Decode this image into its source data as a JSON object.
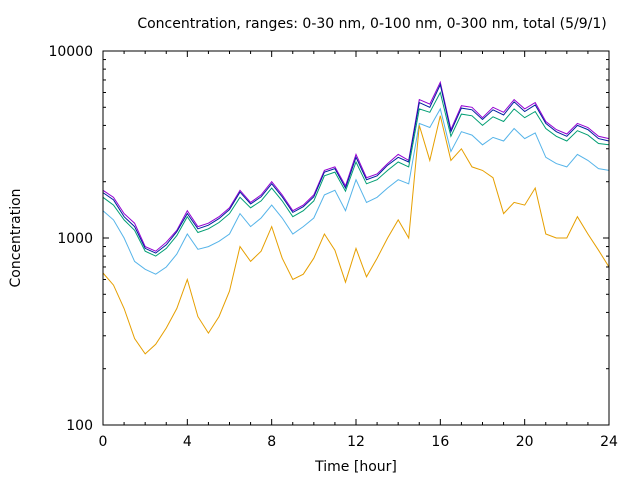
{
  "chart_data": {
    "type": "line",
    "title": "Concentration, ranges: 0-30 nm, 0-100 nm, 0-300 nm, total (5/9/1)",
    "xlabel": "Time [hour]",
    "ylabel": "Concentration",
    "xlim": [
      0,
      24
    ],
    "ylim": [
      100,
      10000
    ],
    "yscale": "log",
    "grid": false,
    "legend": "none",
    "x_ticks": [
      0,
      4,
      8,
      12,
      16,
      20,
      24
    ],
    "x_tick_labels": [
      "0",
      "4",
      "8",
      "12",
      "16",
      "20",
      "24"
    ],
    "y_ticks": [
      100,
      1000,
      10000
    ],
    "y_tick_labels": [
      "100",
      "1000",
      "10000"
    ],
    "x": [
      0,
      0.5,
      1,
      1.5,
      2,
      2.5,
      3,
      3.5,
      4,
      4.5,
      5,
      5.5,
      6,
      6.5,
      7,
      7.5,
      8,
      8.5,
      9,
      9.5,
      10,
      10.5,
      11,
      11.5,
      12,
      12.5,
      13,
      13.5,
      14,
      14.5,
      15,
      15.5,
      16,
      16.5,
      17,
      17.5,
      18,
      18.5,
      19,
      19.5,
      20,
      20.5,
      21,
      21.5,
      22,
      22.5,
      23,
      23.5,
      24
    ],
    "series": [
      {
        "name": "total",
        "color": "#9400d3",
        "values": [
          1800,
          1650,
          1350,
          1200,
          900,
          850,
          950,
          1100,
          1400,
          1150,
          1200,
          1300,
          1450,
          1800,
          1550,
          1700,
          2000,
          1700,
          1400,
          1500,
          1700,
          2300,
          2400,
          1900,
          2800,
          2100,
          2200,
          2500,
          2800,
          2600,
          5500,
          5200,
          6800,
          3800,
          5100,
          5000,
          4400,
          5000,
          4700,
          5500,
          4900,
          5300,
          4200,
          3800,
          3600,
          4100,
          3900,
          3500,
          3400
        ]
      },
      {
        "name": "0-300 nm",
        "color": "#00209f",
        "values": [
          1750,
          1600,
          1300,
          1150,
          880,
          830,
          920,
          1080,
          1350,
          1120,
          1170,
          1270,
          1420,
          1760,
          1520,
          1660,
          1950,
          1660,
          1370,
          1470,
          1660,
          2250,
          2350,
          1850,
          2700,
          2050,
          2150,
          2450,
          2700,
          2550,
          5300,
          5000,
          6600,
          3700,
          4950,
          4850,
          4300,
          4850,
          4550,
          5350,
          4750,
          5150,
          4100,
          3700,
          3500,
          4000,
          3800,
          3400,
          3300
        ]
      },
      {
        "name": "0-100 nm",
        "color": "#009e73",
        "values": [
          1650,
          1500,
          1250,
          1100,
          850,
          800,
          880,
          1030,
          1300,
          1070,
          1120,
          1210,
          1350,
          1650,
          1450,
          1580,
          1850,
          1580,
          1300,
          1400,
          1580,
          2150,
          2250,
          1780,
          2550,
          1950,
          2050,
          2300,
          2550,
          2400,
          4900,
          4700,
          6000,
          3500,
          4600,
          4500,
          4000,
          4450,
          4200,
          4900,
          4400,
          4750,
          3850,
          3500,
          3300,
          3750,
          3550,
          3200,
          3150
        ]
      },
      {
        "name": "0-100 nm (light)",
        "color": "#56b4e9",
        "values": [
          1400,
          1250,
          1000,
          750,
          680,
          640,
          700,
          820,
          1050,
          870,
          900,
          960,
          1050,
          1350,
          1150,
          1280,
          1500,
          1280,
          1050,
          1150,
          1280,
          1700,
          1800,
          1400,
          2050,
          1550,
          1650,
          1850,
          2050,
          1950,
          4100,
          3900,
          4900,
          2900,
          3700,
          3550,
          3150,
          3450,
          3300,
          3850,
          3400,
          3650,
          2700,
          2500,
          2400,
          2800,
          2600,
          2350,
          2300
        ]
      },
      {
        "name": "0-30 nm",
        "color": "#e69f00",
        "values": [
          650,
          560,
          420,
          290,
          240,
          270,
          330,
          420,
          600,
          380,
          310,
          380,
          520,
          900,
          750,
          850,
          1150,
          780,
          600,
          640,
          780,
          1050,
          860,
          580,
          880,
          620,
          780,
          1000,
          1250,
          1000,
          4000,
          2600,
          4500,
          2600,
          3000,
          2400,
          2300,
          2100,
          1350,
          1550,
          1500,
          1850,
          1050,
          1000,
          1000,
          1300,
          1050,
          860,
          700
        ]
      }
    ]
  }
}
